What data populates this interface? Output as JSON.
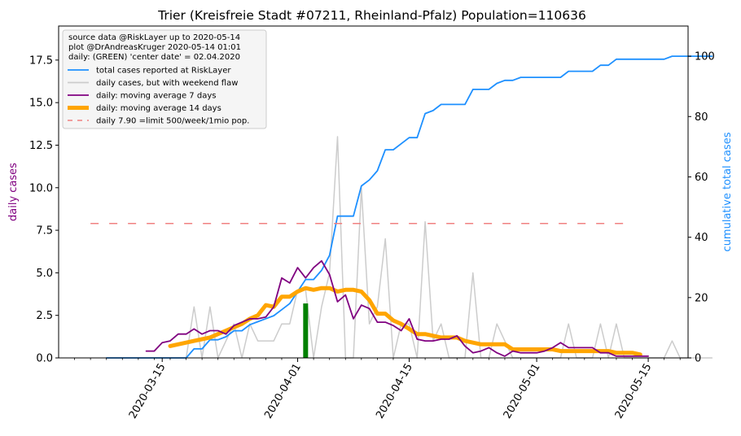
{
  "chart_data": {
    "type": "line",
    "title": "Trier (Kreisfreie Stadt #07211, Rheinland-Pfalz) Population=110636",
    "ylabel_left": "daily cases",
    "ylabel_right": "cumulative total cases",
    "ylim_left": [
      0,
      19.5
    ],
    "ylim_right": [
      0,
      110
    ],
    "yticks_left": [
      "0.0",
      "2.5",
      "5.0",
      "7.5",
      "10.0",
      "12.5",
      "15.0",
      "17.5"
    ],
    "yticks_right": [
      "0",
      "20",
      "40",
      "60",
      "80",
      "100"
    ],
    "xticks": [
      "2020-03-15",
      "2020-04-01",
      "2020-04-15",
      "2020-05-01",
      "2020-05-15"
    ],
    "xrange": [
      "2020-03-02",
      "2020-05-20"
    ],
    "legend_position": "top-left",
    "legend_header": [
      "source data @RiskLayer up to 2020-05-14",
      "plot @DrAndreasKruger 2020-05-14 01:01",
      "daily: (GREEN) 'center date' = 02.04.2020"
    ],
    "colors": {
      "total": "#1e90ff",
      "daily": "#cccccc",
      "ma7": "#800080",
      "ma14": "#ffa500",
      "limit": "#f08080",
      "center": "#008000",
      "left_axis_label": "#800080",
      "right_axis_label": "#1e90ff"
    },
    "series": [
      {
        "name": "total cases reported at RiskLayer",
        "axis": "right",
        "start": "2020-03-08",
        "values": [
          0,
          0,
          0,
          0,
          0,
          0,
          0,
          0,
          0,
          0,
          0,
          3,
          3,
          6,
          6,
          7,
          9,
          9,
          11,
          12,
          13,
          14,
          16,
          18,
          22,
          26,
          26,
          29,
          34,
          47,
          47,
          47,
          57,
          59,
          62,
          69,
          69,
          71,
          73,
          73,
          81,
          82,
          84,
          84,
          84,
          84,
          89,
          89,
          89,
          91,
          92,
          92,
          93,
          93,
          93,
          93,
          93,
          93,
          95,
          95,
          95,
          95,
          97,
          97,
          99,
          99,
          99,
          99,
          99,
          99,
          99,
          100,
          100,
          100,
          100,
          100,
          100
        ]
      },
      {
        "name": "daily cases, but with weekend flaw",
        "axis": "left",
        "start": "2020-03-08",
        "values": [
          0,
          0,
          0,
          0,
          0,
          0,
          0,
          0,
          0,
          0,
          0,
          3,
          0,
          3,
          0,
          1,
          2,
          0,
          2,
          1,
          1,
          1,
          2,
          2,
          4,
          4,
          0,
          3,
          5,
          13,
          0,
          0,
          10,
          2,
          3,
          7,
          0,
          2,
          2,
          0,
          8,
          1,
          2,
          0,
          0,
          0,
          5,
          0,
          0,
          2,
          1,
          0,
          0,
          0,
          0,
          0,
          0,
          0,
          2,
          0,
          0,
          0,
          2,
          0,
          2,
          0,
          0,
          0,
          0,
          0,
          0,
          1,
          0,
          0,
          0,
          0,
          0
        ]
      },
      {
        "name": "daily: moving average 7 days",
        "axis": "left",
        "start": "2020-03-13",
        "values": [
          0.4,
          0.4,
          0.9,
          1.0,
          1.4,
          1.4,
          1.7,
          1.4,
          1.6,
          1.6,
          1.4,
          1.9,
          2.1,
          2.3,
          2.3,
          2.4,
          3.0,
          4.7,
          4.4,
          5.3,
          4.7,
          5.3,
          5.7,
          4.9,
          3.3,
          3.7,
          2.3,
          3.1,
          2.9,
          2.1,
          2.1,
          1.9,
          1.6,
          2.3,
          1.1,
          1.0,
          1.0,
          1.1,
          1.1,
          1.3,
          0.7,
          0.3,
          0.4,
          0.6,
          0.3,
          0.1,
          0.4,
          0.3,
          0.3,
          0.3,
          0.4,
          0.6,
          0.9,
          0.6,
          0.6,
          0.6,
          0.6,
          0.3,
          0.3,
          0.1,
          0.1,
          0.1,
          0.1,
          0.1
        ]
      },
      {
        "name": "daily: moving average 14 days",
        "axis": "left",
        "start": "2020-03-16",
        "values": [
          0.7,
          0.8,
          0.9,
          1.0,
          1.1,
          1.2,
          1.4,
          1.6,
          1.8,
          2.0,
          2.3,
          2.5,
          3.1,
          3.0,
          3.6,
          3.6,
          3.9,
          4.1,
          4.0,
          4.1,
          4.1,
          3.9,
          4.0,
          4.0,
          3.9,
          3.4,
          2.6,
          2.6,
          2.2,
          2.0,
          1.7,
          1.4,
          1.4,
          1.3,
          1.2,
          1.2,
          1.2,
          1.0,
          0.9,
          0.8,
          0.8,
          0.8,
          0.8,
          0.5,
          0.5,
          0.5,
          0.5,
          0.5,
          0.5,
          0.4,
          0.4,
          0.4,
          0.4,
          0.4,
          0.4,
          0.4,
          0.3,
          0.3,
          0.3,
          0.2
        ]
      },
      {
        "name": "daily 7.90 =limit 500/week/1mio pop.",
        "axis": "left",
        "start": "2020-03-06",
        "end": "2020-05-12",
        "value": 7.9
      }
    ],
    "center_bar": {
      "date": "2020-04-02",
      "value": 3.2
    }
  }
}
